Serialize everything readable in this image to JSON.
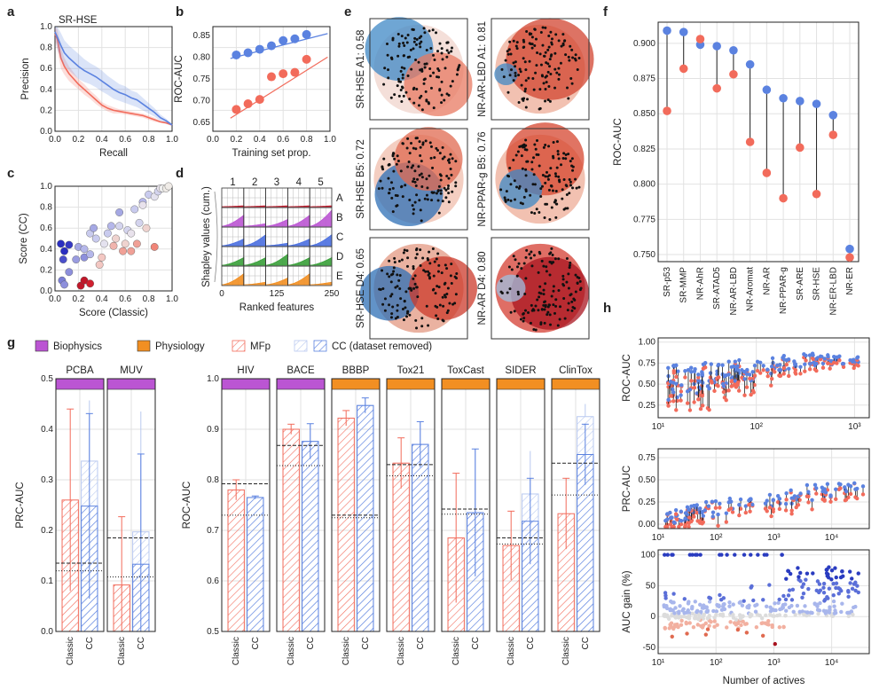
{
  "panel_letters": [
    "a",
    "b",
    "c",
    "d",
    "e",
    "f",
    "g",
    "h"
  ],
  "colors": {
    "red": "#f26b5b",
    "blue": "#5b82e0",
    "purple": "#bb55d3",
    "orange": "#f28f22",
    "dark_red": "#c0182a",
    "dark_blue": "#2a2ec0"
  },
  "chart_data": [
    {
      "panel": "a",
      "type": "line",
      "title": "SR-HSE",
      "xlabel": "Recall",
      "ylabel": "Precision",
      "xlim": [
        0,
        1
      ],
      "ylim": [
        0,
        1
      ],
      "xticks": [
        "0.0",
        "0.2",
        "0.4",
        "0.6",
        "0.8",
        "1.0"
      ],
      "yticks": [
        "0.0",
        "0.2",
        "0.4",
        "0.6",
        "0.8",
        "1.0"
      ],
      "series": [
        {
          "name": "Classic",
          "x": [
            0,
            0.02,
            0.05,
            0.08,
            0.12,
            0.16,
            0.2,
            0.25,
            0.3,
            0.35,
            0.4,
            0.45,
            0.5,
            0.55,
            0.6,
            0.65,
            0.7,
            0.75,
            0.8,
            0.85,
            0.9,
            0.95,
            1.0
          ],
          "y": [
            0.93,
            0.88,
            0.7,
            0.62,
            0.55,
            0.5,
            0.45,
            0.4,
            0.35,
            0.3,
            0.25,
            0.22,
            0.2,
            0.19,
            0.18,
            0.17,
            0.16,
            0.15,
            0.13,
            0.11,
            0.09,
            0.08,
            0.06
          ],
          "band": [
            0.06,
            0.1,
            0.1,
            0.08,
            0.07,
            0.06,
            0.05,
            0.05,
            0.04,
            0.04,
            0.03,
            0.03,
            0.03,
            0.02,
            0.02,
            0.02,
            0.02,
            0.02,
            0.02,
            0.02,
            0.01,
            0.01,
            0.01
          ]
        },
        {
          "name": "CC",
          "x": [
            0,
            0.02,
            0.05,
            0.08,
            0.12,
            0.16,
            0.2,
            0.25,
            0.3,
            0.35,
            0.4,
            0.45,
            0.5,
            0.55,
            0.6,
            0.65,
            0.7,
            0.75,
            0.8,
            0.85,
            0.9,
            0.95,
            1.0
          ],
          "y": [
            0.95,
            0.9,
            0.82,
            0.75,
            0.7,
            0.66,
            0.62,
            0.58,
            0.55,
            0.52,
            0.48,
            0.44,
            0.4,
            0.37,
            0.35,
            0.32,
            0.3,
            0.26,
            0.22,
            0.18,
            0.13,
            0.1,
            0.06
          ],
          "band": [
            0.05,
            0.12,
            0.12,
            0.12,
            0.12,
            0.12,
            0.12,
            0.11,
            0.1,
            0.1,
            0.1,
            0.09,
            0.09,
            0.08,
            0.08,
            0.07,
            0.07,
            0.06,
            0.05,
            0.04,
            0.03,
            0.02,
            0.01
          ]
        }
      ]
    },
    {
      "panel": "b",
      "type": "scatter",
      "xlabel": "Training set prop.",
      "ylabel": "ROC-AUC",
      "xlim": [
        0,
        1
      ],
      "ylim": [
        0.63,
        0.87
      ],
      "xticks": [
        "0.0",
        "0.2",
        "0.4",
        "0.6",
        "0.8",
        "1.0"
      ],
      "yticks": [
        "0.65",
        "0.70",
        "0.75",
        "0.80",
        "0.85"
      ],
      "series": [
        {
          "name": "CC",
          "x": [
            0.2,
            0.3,
            0.4,
            0.5,
            0.6,
            0.7,
            0.8
          ],
          "y": [
            0.805,
            0.81,
            0.818,
            0.826,
            0.838,
            0.842,
            0.852
          ],
          "fit": [
            0.797,
            0.854
          ]
        },
        {
          "name": "Classic",
          "x": [
            0.2,
            0.3,
            0.4,
            0.5,
            0.6,
            0.7,
            0.8
          ],
          "y": [
            0.68,
            0.693,
            0.703,
            0.755,
            0.762,
            0.765,
            0.795
          ],
          "fit": [
            0.66,
            0.8
          ]
        }
      ]
    },
    {
      "panel": "c",
      "type": "scatter",
      "xlabel": "Score (Classic)",
      "ylabel": "Score (CC)",
      "xlim": [
        0,
        1
      ],
      "ylim": [
        0,
        1
      ],
      "xticks": [
        "0.0",
        "0.2",
        "0.4",
        "0.6",
        "0.8",
        "1.0"
      ],
      "yticks": [
        "0.0",
        "0.2",
        "0.4",
        "0.6",
        "0.8",
        "1.0"
      ],
      "points": [
        [
          0.05,
          0.45,
          "#2a2ec0"
        ],
        [
          0.08,
          0.38,
          "#2a2ec0"
        ],
        [
          0.12,
          0.44,
          "#3538c4"
        ],
        [
          0.07,
          0.3,
          "#4a4fcb"
        ],
        [
          0.06,
          0.1,
          "#7a7ed6"
        ],
        [
          0.08,
          0.06,
          "#8d8fdc"
        ],
        [
          0.12,
          0.18,
          "#8d8fdc"
        ],
        [
          0.18,
          0.3,
          "#9a9ce0"
        ],
        [
          0.2,
          0.42,
          "#a5a8e4"
        ],
        [
          0.25,
          0.32,
          "#8d8fdc"
        ],
        [
          0.25,
          0.4,
          "#b5b7ea"
        ],
        [
          0.3,
          0.35,
          "#b5b7ea"
        ],
        [
          0.3,
          0.55,
          "#c9cbee"
        ],
        [
          0.33,
          0.6,
          "#a5a8e4"
        ],
        [
          0.35,
          0.5,
          "#c9cbee"
        ],
        [
          0.38,
          0.25,
          "#f3c7c2"
        ],
        [
          0.4,
          0.32,
          "#f3c7c2"
        ],
        [
          0.42,
          0.45,
          "#e4e2ef"
        ],
        [
          0.45,
          0.55,
          "#c9cbee"
        ],
        [
          0.48,
          0.62,
          "#b5b7ea"
        ],
        [
          0.5,
          0.43,
          "#f0b4ad"
        ],
        [
          0.52,
          0.5,
          "#efd3cf"
        ],
        [
          0.55,
          0.62,
          "#d4d4ee"
        ],
        [
          0.55,
          0.75,
          "#a5a8e4"
        ],
        [
          0.58,
          0.38,
          "#f0a096"
        ],
        [
          0.6,
          0.45,
          "#efd3cf"
        ],
        [
          0.62,
          0.58,
          "#d4d4ee"
        ],
        [
          0.65,
          0.38,
          "#f0a096"
        ],
        [
          0.65,
          0.55,
          "#e8e2ec"
        ],
        [
          0.68,
          0.78,
          "#c9cbee"
        ],
        [
          0.7,
          0.45,
          "#f0a096"
        ],
        [
          0.72,
          0.65,
          "#d4d4ee"
        ],
        [
          0.75,
          0.85,
          "#b5b7ea"
        ],
        [
          0.78,
          0.6,
          "#efd3cf"
        ],
        [
          0.8,
          0.92,
          "#c9cbee"
        ],
        [
          0.85,
          0.42,
          "#f08578"
        ],
        [
          0.85,
          0.9,
          "#e4e2ef"
        ],
        [
          0.88,
          0.95,
          "#d4d4ee"
        ],
        [
          0.9,
          0.98,
          "#e8e2ec"
        ],
        [
          0.92,
          0.98,
          "#efefef"
        ],
        [
          0.95,
          0.98,
          "#f0ece8"
        ],
        [
          0.97,
          1.0,
          "#f0ece8"
        ],
        [
          0.22,
          0.05,
          "#c0182a"
        ],
        [
          0.25,
          0.1,
          "#c0182a"
        ],
        [
          0.3,
          0.07,
          "#d0202f"
        ],
        [
          0.75,
          0.82,
          "#e8e2ec"
        ]
      ]
    },
    {
      "panel": "d",
      "type": "area",
      "xlabel": "Ranked features",
      "ylabel": "Shapley values (cum.)",
      "xticks": [
        "0",
        "125",
        "250"
      ],
      "columns": [
        "1",
        "2",
        "3",
        "4",
        "5"
      ],
      "rows": [
        "A",
        "B",
        "C",
        "D",
        "E"
      ],
      "row_colors": [
        "#c0182a",
        "#bb55d3",
        "#4a6fe0",
        "#3aa03a",
        "#f28f22"
      ]
    },
    {
      "panel": "e",
      "type": "heatmap",
      "maps": [
        {
          "label": "SR-HSE A1: 0.58",
          "col": 0,
          "row": 0
        },
        {
          "label": "NR-AR-LBD A1: 0.81",
          "col": 1,
          "row": 0
        },
        {
          "label": "SR-HSE B5: 0.72",
          "col": 0,
          "row": 1
        },
        {
          "label": "NR-PPAR-g B5: 0.76",
          "col": 1,
          "row": 1
        },
        {
          "label": "SR-HSE D4: 0.65",
          "col": 0,
          "row": 2
        },
        {
          "label": "NR-AR D4: 0.80",
          "col": 1,
          "row": 2
        }
      ]
    },
    {
      "panel": "f",
      "type": "scatter",
      "ylabel": "ROC-AUC",
      "ylim": [
        0.745,
        0.915
      ],
      "yticks": [
        "0.750",
        "0.775",
        "0.800",
        "0.825",
        "0.850",
        "0.875",
        "0.900"
      ],
      "categories": [
        "SR-p53",
        "SR-MMP",
        "NR-AhR",
        "SR-ATAD5",
        "NR-AR-LBD",
        "NR-Aromat",
        "NR-AR",
        "NR-PPAR-g",
        "SR-ARE",
        "SR-HSE",
        "NR-ER-LBD",
        "NR-ER"
      ],
      "series": [
        {
          "name": "CC",
          "values": [
            0.909,
            0.908,
            0.899,
            0.898,
            0.895,
            0.885,
            0.867,
            0.861,
            0.859,
            0.857,
            0.849,
            0.754
          ]
        },
        {
          "name": "Classic",
          "values": [
            0.852,
            0.882,
            0.903,
            0.868,
            0.878,
            0.83,
            0.808,
            0.79,
            0.826,
            0.793,
            0.835,
            0.748
          ]
        }
      ]
    },
    {
      "panel": "g",
      "type": "bar",
      "legend": {
        "biophysics": "Biophysics",
        "physiology": "Physiology",
        "mfp": "MFp",
        "cc": "CC (dataset removed)"
      },
      "groups": [
        {
          "name": "PCBA",
          "category": "Biophysics",
          "ylim": [
            0,
            0.5
          ],
          "classic": 0.26,
          "classic_err": 0.18,
          "cc": 0.248,
          "cc_err": 0.183,
          "cc_light": 0.337,
          "cc_light_err": 0.12,
          "dash": 0.135,
          "dot": 0.12
        },
        {
          "name": "MUV",
          "category": "Biophysics",
          "ylim": [
            0,
            0.5
          ],
          "classic": 0.092,
          "classic_err": 0.135,
          "cc": 0.133,
          "cc_err": 0.218,
          "cc_light": 0.197,
          "cc_light_err": 0.238,
          "dash": 0.185,
          "dot": 0.108
        },
        {
          "name": "HIV",
          "category": "Biophysics",
          "ylim": [
            0.5,
            1.0
          ],
          "classic": 0.78,
          "classic_err": 0.02,
          "cc": 0.765,
          "cc_err": 0.003,
          "cc_light": 0.765,
          "cc_light_err": 0.003,
          "dash": 0.792,
          "dot": 0.73
        },
        {
          "name": "BACE",
          "category": "Biophysics",
          "ylim": [
            0.5,
            1.0
          ],
          "classic": 0.9,
          "classic_err": 0.01,
          "cc": 0.876,
          "cc_err": 0.035,
          "cc_light": 0.876,
          "cc_light_err": 0.035,
          "dash": 0.868,
          "dot": 0.828
        },
        {
          "name": "BBBP",
          "category": "Physiology",
          "ylim": [
            0.5,
            1.0
          ],
          "classic": 0.922,
          "classic_err": 0.015,
          "cc": 0.947,
          "cc_err": 0.015,
          "cc_light": 0.947,
          "cc_light_err": 0.015,
          "dash": 0.73,
          "dot": 0.725
        },
        {
          "name": "Tox21",
          "category": "Physiology",
          "ylim": [
            0.5,
            1.0
          ],
          "classic": 0.833,
          "classic_err": 0.05,
          "cc": 0.87,
          "cc_err": 0.045,
          "cc_light": 0.87,
          "cc_light_err": 0.045,
          "dash": 0.83,
          "dot": 0.808
        },
        {
          "name": "ToxCast",
          "category": "Physiology",
          "ylim": [
            0.5,
            1.0
          ],
          "classic": 0.685,
          "classic_err": 0.128,
          "cc": 0.735,
          "cc_err": 0.126,
          "cc_light": 0.735,
          "cc_light_err": 0.126,
          "dash": 0.742,
          "dot": 0.732
        },
        {
          "name": "SIDER",
          "category": "Physiology",
          "ylim": [
            0.5,
            1.0
          ],
          "classic": 0.67,
          "classic_err": 0.068,
          "cc": 0.718,
          "cc_err": 0.085,
          "cc_light": 0.772,
          "cc_light_err": 0.085,
          "dash": 0.685,
          "dot": 0.673
        },
        {
          "name": "ClinTox",
          "category": "Physiology",
          "ylim": [
            0.5,
            1.0
          ],
          "classic": 0.733,
          "classic_err": 0.07,
          "cc": 0.85,
          "cc_err": 0.06,
          "cc_light": 0.925,
          "cc_light_err": 0.025,
          "dash": 0.833,
          "dot": 0.77
        }
      ],
      "ylabel_left": "PRC-AUC",
      "ylabel_right": "ROC-AUC",
      "yticks_left": [
        "0.0",
        "0.1",
        "0.2",
        "0.3",
        "0.4",
        "0.5"
      ],
      "yticks_right": [
        "0.5",
        "0.6",
        "0.7",
        "0.8",
        "0.9",
        "1.0"
      ],
      "xticklabels": [
        "Classic",
        "CC"
      ]
    },
    {
      "panel": "h",
      "type": "scatter",
      "xlabel": "Number of actives",
      "subplots": [
        {
          "ylabel": "ROC-AUC",
          "yticks": [
            "0.25",
            "0.50",
            "0.75",
            "1.00"
          ],
          "ylim": [
            0.1,
            1.05
          ],
          "xlog": [
            1,
            3.15
          ],
          "xticks": [
            "10¹",
            "10²",
            "10³"
          ]
        },
        {
          "ylabel": "PRC-AUC",
          "yticks": [
            "0.00",
            "0.25",
            "0.50",
            "0.75"
          ],
          "ylim": [
            -0.05,
            0.85
          ],
          "xlog": [
            1,
            4.65
          ],
          "xticks": [
            "10¹",
            "10²",
            "10³",
            "10⁴"
          ]
        },
        {
          "ylabel": "AUC gain (%)",
          "yticks": [
            "-50",
            "0",
            "50",
            "100"
          ],
          "ylim": [
            -60,
            108
          ],
          "xlog": [
            1,
            4.65
          ],
          "xticks": [
            "10¹",
            "10²",
            "10³",
            "10⁴"
          ]
        }
      ]
    }
  ]
}
